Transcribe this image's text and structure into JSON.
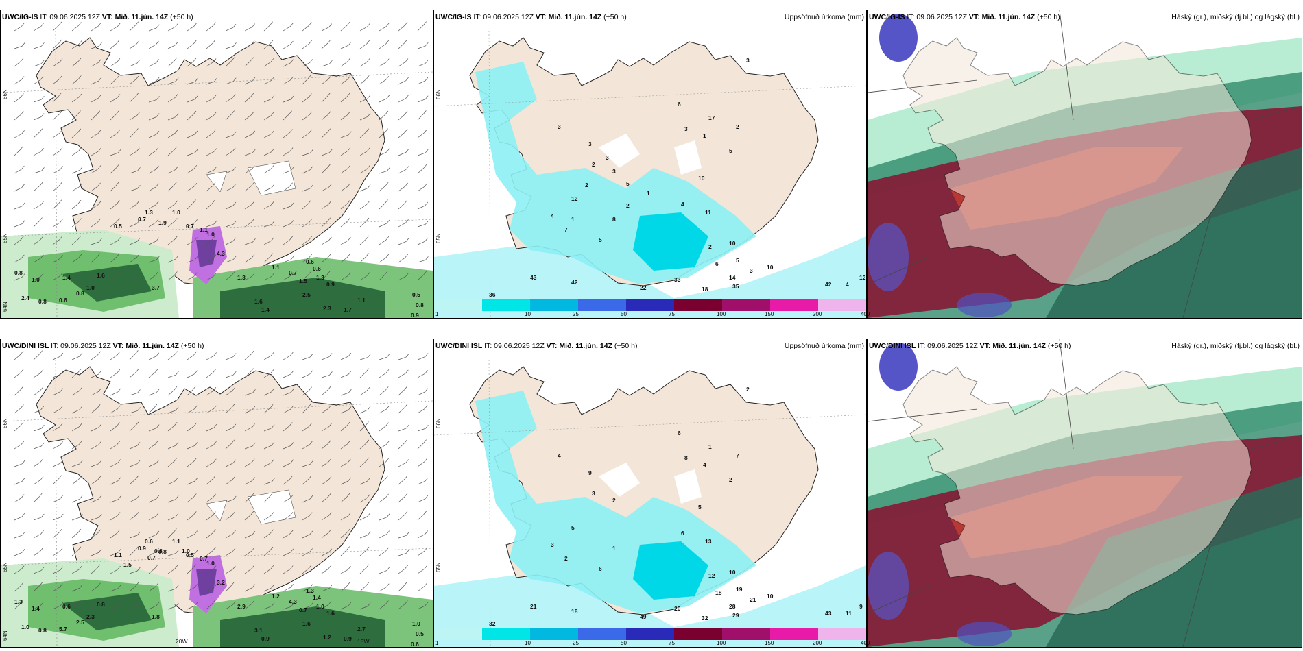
{
  "panels": [
    {
      "model": "UWC/IG-IS",
      "it": "IT: 09.06.2025 12Z",
      "vt_label": "VT:",
      "vt": "Mið. 11.jún. 14Z",
      "lead": "(+50 h)",
      "right_title": "",
      "lat_labels": [
        "66N",
        "65N",
        "64N"
      ],
      "values": [
        "1.3",
        "1.0",
        "0.7",
        "0.5",
        "1.9",
        "1.1",
        "1.0",
        "0.7",
        "0.8",
        "1.0",
        "1.4",
        "1.6",
        "1.0",
        "3.7",
        "2.4",
        "0.8",
        "0.6",
        "0.8",
        "4.3",
        "1.3",
        "1.6",
        "1.4",
        "2.3",
        "2.5",
        "1.1",
        "1.7",
        "1.5",
        "1.3",
        "0.7",
        "0.9",
        "0.6",
        "0.6",
        "1.1",
        "0.5",
        "0.8",
        "0.9"
      ]
    },
    {
      "model": "UWC/IG-IS",
      "it": "IT: 09.06.2025 12Z",
      "vt_label": "VT:",
      "vt": "Mið. 11.jún. 14Z",
      "lead": "(+50 h)",
      "right_title": "Uppsöfnuð úrkoma (mm)",
      "lat_labels": [
        "66N",
        "65N"
      ],
      "values": [
        "3",
        "6",
        "17",
        "2",
        "3",
        "1",
        "5",
        "10",
        "4",
        "11",
        "2",
        "10",
        "6",
        "5",
        "3",
        "14",
        "18",
        "35",
        "42",
        "43",
        "36",
        "33",
        "22",
        "42",
        "4",
        "12",
        "10",
        "3",
        "3",
        "2",
        "3",
        "12",
        "4",
        "7",
        "5",
        "8",
        "2",
        "1",
        "5",
        "3",
        "2",
        "1"
      ]
    },
    {
      "model": "UWC/IG-IS",
      "it": "IT: 09.06.2025 12Z",
      "vt_label": "VT:",
      "vt": "Mið. 11.jún. 14Z",
      "lead": "(+50 h)",
      "right_title": "Háský (gr.), miðský (fj.bl.) og lágský (bl.)",
      "lat_labels": [],
      "values": []
    },
    {
      "model": "UWC/DINI ISL",
      "it": "IT: 09.06.2025 12Z",
      "vt_label": "VT:",
      "vt": "Mið. 11.jún. 14Z",
      "lead": "(+50 h)",
      "right_title": "",
      "lat_labels": [
        "66N",
        "65N",
        "64N"
      ],
      "values": [
        "0.6",
        "1.1",
        "0.9",
        "1.1",
        "0.8",
        "0.7",
        "1.0",
        "0.5",
        "1.3",
        "1.4",
        "0.6",
        "0.8",
        "2.3",
        "1.8",
        "1.0",
        "0.8",
        "5.7",
        "2.5",
        "3.2",
        "2.9",
        "3.1",
        "0.9",
        "1.2",
        "1.6",
        "2.7",
        "0.9",
        "0.7",
        "1.0",
        "4.3",
        "1.6",
        "1.3",
        "1.4",
        "1.2",
        "1.0",
        "0.5",
        "0.6",
        "0.8",
        "1.0",
        "0.7",
        "1.5"
      ]
    },
    {
      "model": "UWC/DINI ISL",
      "it": "IT: 09.06.2025 12Z",
      "vt_label": "VT:",
      "vt": "Mið. 11.jún. 14Z",
      "lead": "(+50 h)",
      "right_title": "Uppsöfnuð úrkoma (mm)",
      "lat_labels": [
        "66N",
        "65N"
      ],
      "values": [
        "2",
        "6",
        "1",
        "7",
        "8",
        "4",
        "2",
        "5",
        "6",
        "13",
        "12",
        "10",
        "18",
        "19",
        "21",
        "28",
        "32",
        "29",
        "18",
        "21",
        "32",
        "20",
        "49",
        "43",
        "11",
        "9",
        "10",
        "9",
        "4",
        "3",
        "2",
        "5",
        "3",
        "2",
        "6",
        "1"
      ]
    },
    {
      "model": "UWC/DINI ISL",
      "it": "IT: 09.06.2025 12Z",
      "vt_label": "VT:",
      "vt": "Mið. 11.jún. 14Z",
      "lead": "(+50 h)",
      "right_title": "Háský (gr.), miðský (fj.bl.) og lágský (bl.)",
      "lat_labels": [],
      "values": []
    }
  ],
  "colorbar": {
    "ticks": [
      "1",
      "10",
      "25",
      "50",
      "75",
      "100",
      "150",
      "200",
      "400"
    ],
    "colors": [
      "#bdf5f5",
      "#00e5e5",
      "#00b8e0",
      "#3a6ae8",
      "#2a2ab8",
      "#7a0030",
      "#a0106a",
      "#e81aa8",
      "#f0b4ec"
    ]
  },
  "lon_labels": [
    "20W",
    "15W"
  ]
}
